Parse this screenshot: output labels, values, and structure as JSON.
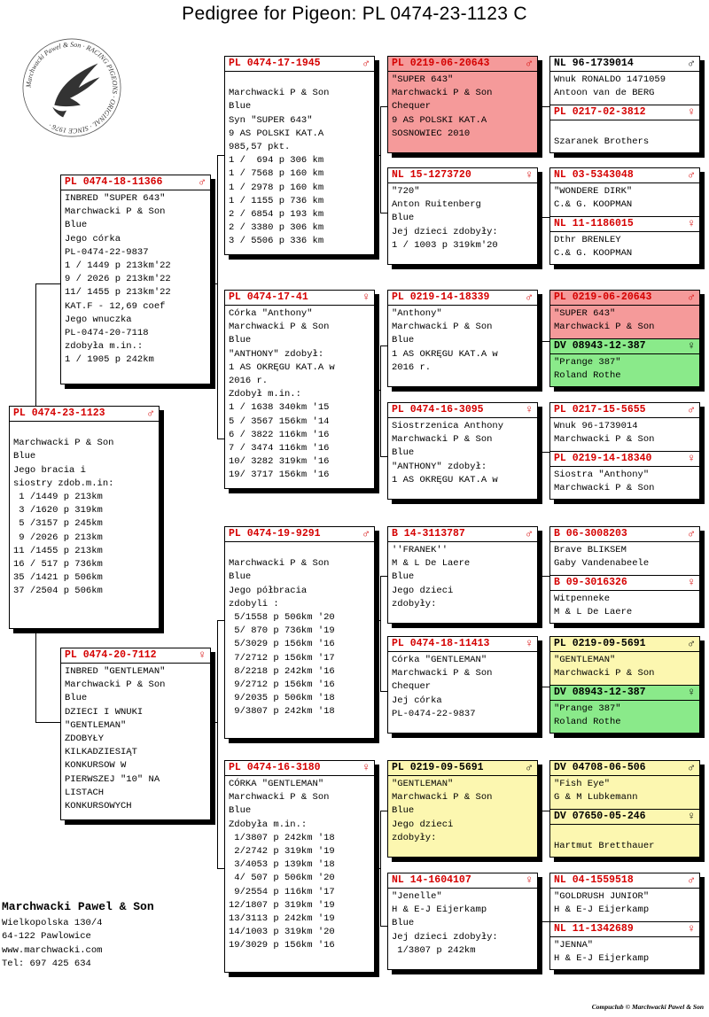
{
  "title": "Pedigree for Pigeon: PL  0474-23-1123 C",
  "logo": {
    "text_ring": "Marchwacki Pawel & Son · RACING PIGEONS · ORIGINAL · SINCE 1976 ·"
  },
  "colors": {
    "ring_red": "#d50000",
    "card_red": "#f59a9a",
    "card_green": "#8aea8a",
    "card_yellow": "#fcf7b0"
  },
  "subject": {
    "ring": "PL  0474-23-1123",
    "sex": "♂",
    "lines": [
      "",
      "Marchwacki P & Son",
      "Blue",
      "Jego bracia i",
      "siostry zdob.m.in:",
      " 1 /1449 p 213km",
      " 3 /1620 p 319km",
      " 5 /3157 p 245km",
      " 9 /2026 p 213km",
      "11 /1455 p 213km",
      "16 / 517 p 736km",
      "35 /1421 p 506km",
      "37 /2504 p 506km"
    ]
  },
  "father": {
    "ring": "PL  0474-18-11366",
    "sex": "♂",
    "lines": [
      "INBRED \"SUPER 643\"",
      "Marchwacki P & Son",
      "Blue",
      "Jego córka",
      "PL-0474-22-9837",
      "1 / 1449 p 213km'22",
      "9 / 2026 p 213km'22",
      "11/ 1455 p 213km'22",
      "KAT.F - 12,69 coef",
      "Jego wnuczka",
      "PL-0474-20-7118",
      "zdobyła m.in.:",
      "1 / 1905 p 242km"
    ]
  },
  "mother": {
    "ring": "PL  0474-20-7112",
    "sex": "♀",
    "lines": [
      "INBRED \"GENTLEMAN\"",
      "Marchwacki P & Son",
      "Blue",
      "DZIECI I WNUKI",
      "\"GENTLEMAN\"",
      "ZDOBYŁY",
      "KILKADZIESIĄT",
      "KONKURSOW W",
      "PIERWSZEJ \"10\" NA",
      "LISTACH",
      "KONKURSOWYCH"
    ]
  },
  "gp": [
    {
      "ring": "PL  0474-17-1945",
      "sex": "♂",
      "lines": [
        "",
        "Marchwacki P & Son",
        "Blue",
        "Syn \"SUPER 643\"",
        "9 AS POLSKI KAT.A",
        "985,57 pkt.",
        "1 /  694 p 306 km",
        "1 / 7568 p 160 km",
        "1 / 2978 p 160 km",
        "1 / 1155 p 736 km",
        "2 / 6854 p 193 km",
        "2 / 3380 p 306 km",
        "3 / 5506 p 336 km"
      ]
    },
    {
      "ring": "PL  0474-17-41",
      "sex": "♀",
      "lines": [
        "Córka \"Anthony\"",
        "Marchwacki P & Son",
        "Blue",
        "\"ANTHONY\" zdobył:",
        "1 AS OKRĘGU KAT.A w",
        "2016 r.",
        "Zdobył m.in.:",
        "1 / 1638 340km '15",
        "5 / 3567 156km '14",
        "6 / 3822 116km '16",
        "7 / 3474 116km '16",
        "10/ 3282 319km '16",
        "19/ 3717 156km '16"
      ]
    },
    {
      "ring": "PL  0474-19-9291",
      "sex": "♂",
      "lines": [
        "",
        "Marchwacki P & Son",
        "Blue",
        "Jego półbracia",
        "zdobyli :",
        " 5/1558 p 506km '20",
        " 5/ 870 p 736km '19",
        " 5/3029 p 156km '16",
        " 7/2712 p 156km '17",
        " 8/2218 p 242km '16",
        " 9/2712 p 156km '16",
        " 9/2035 p 506km '18",
        " 9/3807 p 242km '18"
      ]
    },
    {
      "ring": "PL  0474-16-3180",
      "sex": "♀",
      "lines": [
        "CÓRKA \"GENTLEMAN\"",
        "Marchwacki P & Son",
        "Blue",
        "Zdobyła m.in.:",
        " 1/3807 p 242km '18",
        " 2/2742 p 319km '19",
        " 3/4053 p 139km '18",
        " 4/ 507 p 506km '20",
        " 9/2554 p 116km '17",
        "12/1807 p 319km '19",
        "13/3113 p 242km '19",
        "14/1003 p 319km '20",
        "19/3029 p 156km '16"
      ]
    }
  ],
  "ggp": [
    {
      "ring": "PL  0219-06-20643",
      "sex": "♂",
      "lines": [
        "\"SUPER 643\"",
        "Marchwacki P & Son",
        "Chequer",
        "9 AS POLSKI KAT.A",
        "SOSNOWIEC 2010"
      ]
    },
    {
      "ring": "NL  15-1273720",
      "sex": "♀",
      "lines": [
        "\"720\"",
        "Anton Ruitenberg",
        "Blue",
        "Jej dzieci zdobyły:",
        "1 / 1003 p 319km'20"
      ]
    },
    {
      "ring": "PL  0219-14-18339",
      "sex": "♂",
      "lines": [
        "\"Anthony\"",
        "Marchwacki P & Son",
        "Blue",
        "1 AS OKRĘGU KAT.A w",
        "2016 r."
      ]
    },
    {
      "ring": "PL  0474-16-3095",
      "sex": "♀",
      "lines": [
        "Siostrzenica Anthony",
        "Marchwacki P & Son",
        "Blue",
        "\"ANTHONY\" zdobył:",
        "1 AS OKRĘGU KAT.A w"
      ]
    },
    {
      "ring": "B  14-3113787",
      "sex": "♂",
      "lines": [
        "''FRANEK''",
        "M & L De Laere",
        "Blue",
        "Jego dzieci",
        "zdobyły:"
      ]
    },
    {
      "ring": "PL  0474-18-11413",
      "sex": "♀",
      "lines": [
        "Córka \"GENTLEMAN\"",
        "Marchwacki P & Son",
        "Chequer",
        "Jej córka",
        "PL-0474-22-9837"
      ]
    },
    {
      "ring": "PL  0219-09-5691",
      "sex": "♂",
      "lines": [
        "\"GENTLEMAN\"",
        "Marchwacki P & Son",
        "Blue",
        "Jego dzieci",
        "zdobyły:"
      ]
    },
    {
      "ring": "NL  14-1604107",
      "sex": "♀",
      "lines": [
        "\"Jenelle\"",
        "H & E-J Eijerkamp",
        "Blue",
        "Jej dzieci zdobyły:",
        " 1/3807 p 242km"
      ]
    }
  ],
  "gggp": [
    {
      "ring": "NL  96-1739014",
      "sex": "♂",
      "lines": [
        "Wnuk RONALDO 1471059",
        "Antoon van de BERG"
      ]
    },
    {
      "ring": "PL  0217-02-3812",
      "sex": "♀",
      "lines": [
        "",
        "Szaranek Brothers"
      ]
    },
    {
      "ring": "NL  03-5343048",
      "sex": "♂",
      "lines": [
        "\"WONDERE DIRK\"",
        "C.& G. KOOPMAN"
      ]
    },
    {
      "ring": "NL  11-1186015",
      "sex": "♀",
      "lines": [
        "Dthr BRENLEY",
        "C.& G. KOOPMAN"
      ]
    },
    {
      "ring": "PL  0219-06-20643",
      "sex": "♂",
      "lines": [
        "\"SUPER 643\"",
        "Marchwacki P & Son"
      ]
    },
    {
      "ring": "DV  08943-12-387",
      "sex": "♀",
      "lines": [
        "\"Prange 387\"",
        "Roland Rothe"
      ]
    },
    {
      "ring": "PL  0217-15-5655",
      "sex": "♂",
      "lines": [
        "Wnuk 96-1739014",
        "Marchwacki P & Son"
      ]
    },
    {
      "ring": "PL  0219-14-18340",
      "sex": "♀",
      "lines": [
        "Siostra \"Anthony\"",
        "Marchwacki P & Son"
      ]
    },
    {
      "ring": "B  06-3008203",
      "sex": "♂",
      "lines": [
        "Brave BLIKSEM",
        "Gaby Vandenabeele"
      ]
    },
    {
      "ring": "B  09-3016326",
      "sex": "♀",
      "lines": [
        "Witpenneke",
        "M & L De Laere"
      ]
    },
    {
      "ring": "PL  0219-09-5691",
      "sex": "♂",
      "lines": [
        "\"GENTLEMAN\"",
        "Marchwacki P & Son"
      ]
    },
    {
      "ring": "DV  08943-12-387",
      "sex": "♀",
      "lines": [
        "\"Prange 387\"",
        "Roland Rothe"
      ]
    },
    {
      "ring": "DV  04708-06-506",
      "sex": "♂",
      "lines": [
        "\"Fish Eye\"",
        "G & M Lubkemann"
      ]
    },
    {
      "ring": "DV  07650-05-246",
      "sex": "♀",
      "lines": [
        "",
        "Hartmut Bretthauer"
      ]
    },
    {
      "ring": "NL  04-1559518",
      "sex": "♂",
      "lines": [
        "\"GOLDRUSH JUNIOR\"",
        "H & E-J Eijerkamp"
      ]
    },
    {
      "ring": "NL  11-1342689",
      "sex": "♀",
      "lines": [
        "\"JENNA\"",
        "H & E-J Eijerkamp"
      ]
    }
  ],
  "address": {
    "name": "Marchwacki Pawel & Son",
    "lines": [
      "Wielkopolska 130/4",
      "64-122 Pawlowice",
      "www.marchwacki.com",
      "Tel: 697 425 634"
    ]
  },
  "footer": "Compuclub © Marchwacki Pawel & Son"
}
